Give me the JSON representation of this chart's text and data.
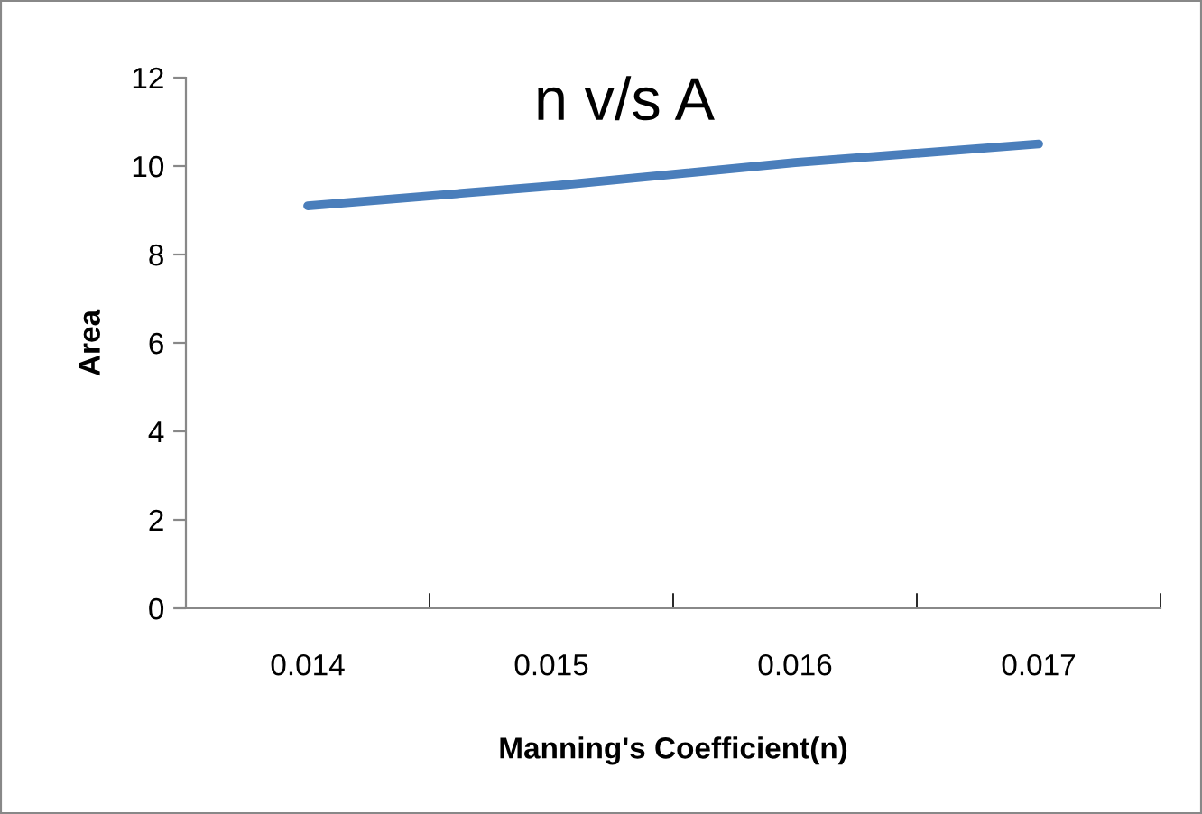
{
  "chart_data": {
    "type": "line",
    "title": "n v/s A",
    "xlabel": "Manning's Coefficient(n)",
    "ylabel": "Area",
    "categories": [
      "0.014",
      "0.015",
      "0.016",
      "0.017"
    ],
    "series": [
      {
        "color": "#4a7ebb",
        "values": [
          9.1,
          9.55,
          10.08,
          10.5
        ]
      }
    ],
    "ylim": [
      0,
      12
    ],
    "yticks": [
      0,
      2,
      4,
      6,
      8,
      10,
      12
    ],
    "grid": false,
    "legend": false,
    "marker": "none",
    "line_style": "solid"
  }
}
